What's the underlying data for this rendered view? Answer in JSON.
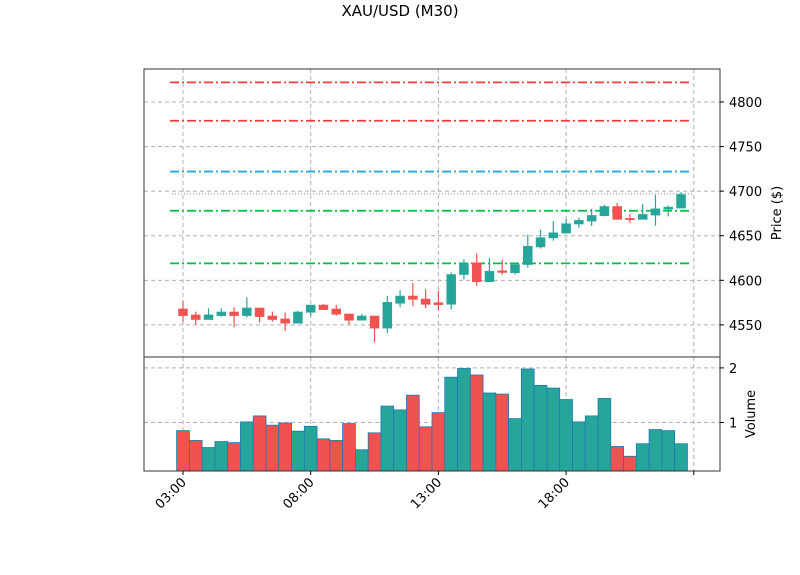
{
  "chart_data": {
    "type": "candlestick",
    "title": "XAU/USD (M30)",
    "colors": {
      "up": "#26a69a",
      "down": "#ef5350",
      "volume_edge": "#1f77b4"
    },
    "grid": true,
    "price_panel": {
      "ylabel": "Price ($)",
      "ylim": [
        4514,
        4837
      ],
      "yticks": [
        4550,
        4600,
        4650,
        4700,
        4750,
        4800
      ],
      "ytick_labels": [
        "4550",
        "4600",
        "4650",
        "4700",
        "4750",
        "4800"
      ]
    },
    "volume_panel": {
      "ylabel": "Volume",
      "ylim": [
        0.11,
        2.2
      ],
      "yticks": [
        1,
        2
      ],
      "ytick_labels": [
        "1",
        "2"
      ]
    },
    "xtick_labels": [
      "03:00",
      "08:00",
      "13:00",
      "18:00",
      ""
    ],
    "xtick_indices": [
      0,
      10,
      20,
      30,
      40
    ],
    "hlines": [
      {
        "value": 4822,
        "color": "#f03c3c",
        "style": "dashdot"
      },
      {
        "value": 4779,
        "color": "#f03c3c",
        "style": "dashdot"
      },
      {
        "value": 4722,
        "color": "#22aadd",
        "style": "dashdot"
      },
      {
        "value": 4678,
        "color": "#00c040",
        "style": "dashdot"
      },
      {
        "value": 4619,
        "color": "#00c040",
        "style": "dashdot"
      },
      {
        "value": 4697,
        "color": "#888888",
        "style": "dotted"
      }
    ],
    "ohlc": [
      [
        4567.9,
        4576.8,
        4553.7,
        4560.4
      ],
      [
        4561.2,
        4564.9,
        4550.0,
        4556.0
      ],
      [
        4556.0,
        4568.6,
        4556.0,
        4561.2
      ],
      [
        4560.4,
        4568.6,
        4559.3,
        4564.5
      ],
      [
        4564.5,
        4569.7,
        4547.4,
        4560.4
      ],
      [
        4560.4,
        4580.9,
        4558.6,
        4569.0
      ],
      [
        4569.0,
        4569.0,
        4553.0,
        4559.3
      ],
      [
        4560.0,
        4564.9,
        4553.7,
        4556.0
      ],
      [
        4556.7,
        4563.8,
        4543.3,
        4551.9
      ],
      [
        4551.9,
        4565.6,
        4551.9,
        4564.5
      ],
      [
        4564.1,
        4572.3,
        4560.0,
        4572.3
      ],
      [
        4572.3,
        4573.4,
        4566.7,
        4567.1
      ],
      [
        4567.9,
        4572.3,
        4560.4,
        4561.9
      ],
      [
        4562.3,
        4562.3,
        4550.4,
        4555.2
      ],
      [
        4555.2,
        4562.3,
        4555.2,
        4560.0
      ],
      [
        4560.0,
        4560.0,
        4530.3,
        4546.3
      ],
      [
        4546.3,
        4582.7,
        4540.7,
        4575.3
      ],
      [
        4574.2,
        4589.0,
        4569.7,
        4582.4
      ],
      [
        4582.4,
        4597.0,
        4571.0,
        4578.6
      ],
      [
        4579.0,
        4590.0,
        4568.6,
        4573.0
      ],
      [
        4574.9,
        4588.0,
        4566.7,
        4572.7
      ],
      [
        4573.1,
        4608.8,
        4567.5,
        4606.5
      ],
      [
        4606.5,
        4623.7,
        4601.0,
        4618.8
      ],
      [
        4619.6,
        4630.0,
        4593.9,
        4598.4
      ],
      [
        4598.4,
        4625.1,
        4598.4,
        4610.3
      ],
      [
        4610.7,
        4623.3,
        4606.5,
        4608.8
      ],
      [
        4608.4,
        4617.7,
        4606.5,
        4617.7
      ],
      [
        4617.7,
        4651.2,
        4614.4,
        4638.2
      ],
      [
        4637.4,
        4656.8,
        4635.6,
        4647.8
      ],
      [
        4647.5,
        4666.4,
        4644.5,
        4653.4
      ],
      [
        4653.0,
        4669.0,
        4653.0,
        4663.5
      ],
      [
        4663.1,
        4670.2,
        4659.0,
        4667.2
      ],
      [
        4666.4,
        4680.2,
        4660.9,
        4672.8
      ],
      [
        4672.4,
        4684.7,
        4671.7,
        4682.8
      ],
      [
        4682.8,
        4686.9,
        4667.9,
        4668.3
      ],
      [
        4669.4,
        4674.6,
        4664.2,
        4668.0
      ],
      [
        4668.3,
        4685.8,
        4668.3,
        4673.9
      ],
      [
        4673.1,
        4695.8,
        4661.2,
        4680.2
      ],
      [
        4679.8,
        4683.9,
        4671.7,
        4682.1
      ],
      [
        4681.0,
        4698.8,
        4681.0,
        4696.2
      ]
    ],
    "volume": [
      0.85,
      0.67,
      0.54,
      0.65,
      0.63,
      1.01,
      1.12,
      0.95,
      0.99,
      0.84,
      0.93,
      0.7,
      0.67,
      0.98,
      0.5,
      0.81,
      1.3,
      1.23,
      1.5,
      0.92,
      1.18,
      1.83,
      1.99,
      1.87,
      1.54,
      1.52,
      1.07,
      1.98,
      1.68,
      1.63,
      1.42,
      1.01,
      1.12,
      1.44,
      0.56,
      0.38,
      0.61,
      0.87,
      0.85,
      0.61
    ]
  }
}
